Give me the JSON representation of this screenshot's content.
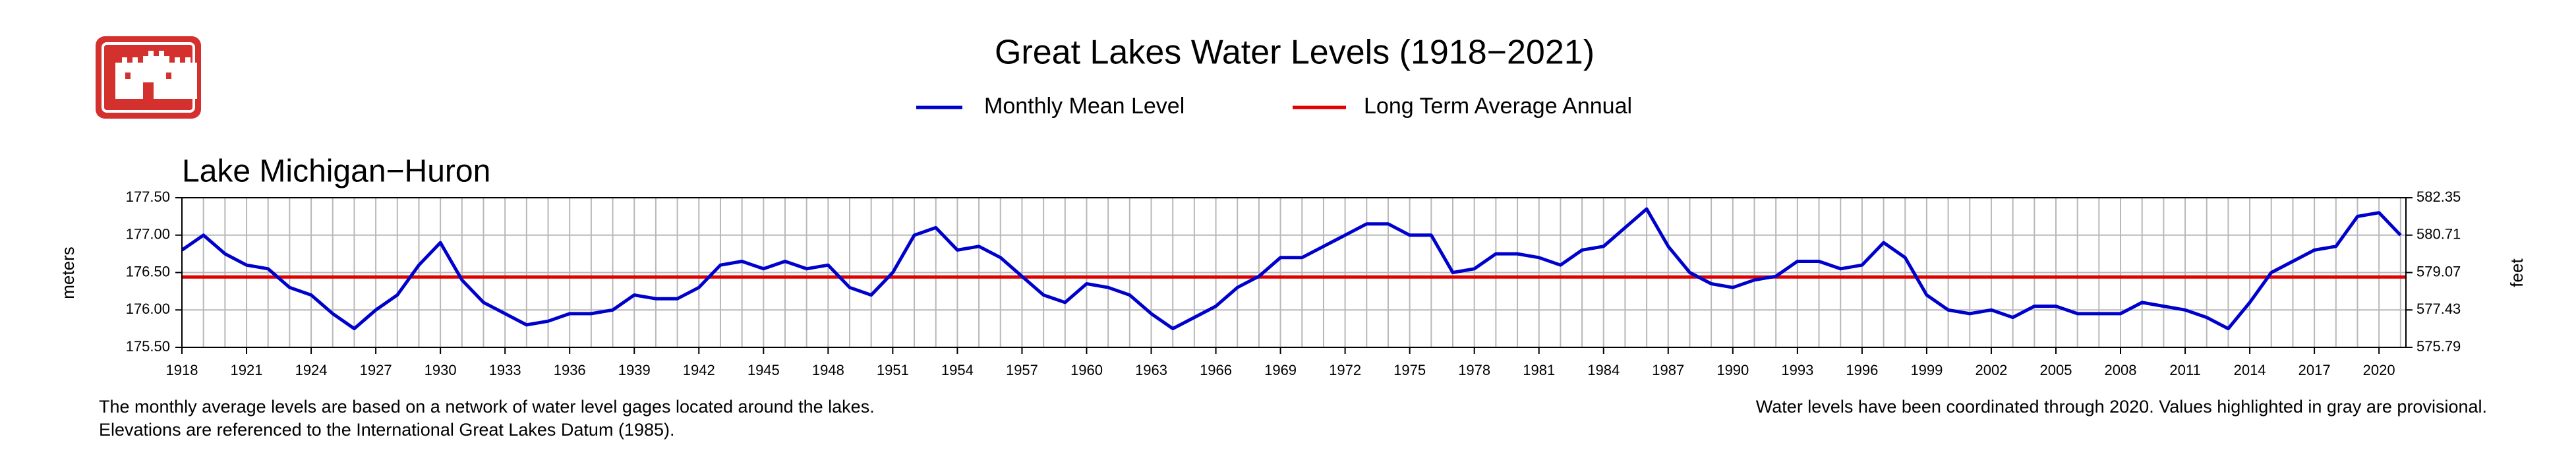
{
  "chart_data": {
    "type": "line",
    "title": "Great Lakes Water Levels (1918−2021)",
    "subtitle": "Lake Michigan−Huron",
    "ylabel": "meters",
    "y2label": "feet",
    "notes": [
      "The monthly average levels are based on a network of water level gages located around the lakes.",
      "Elevations are referenced to the International Great Lakes Datum (1985).",
      "Water levels have been coordinated through 2020. Values highlighted in gray are provisional."
    ],
    "x": [
      1918,
      1919,
      1920,
      1921,
      1922,
      1923,
      1924,
      1925,
      1926,
      1927,
      1928,
      1929,
      1930,
      1931,
      1932,
      1933,
      1934,
      1935,
      1936,
      1937,
      1938,
      1939,
      1940,
      1941,
      1942,
      1943,
      1944,
      1945,
      1946,
      1947,
      1948,
      1949,
      1950,
      1951,
      1952,
      1953,
      1954,
      1955,
      1956,
      1957,
      1958,
      1959,
      1960,
      1961,
      1962,
      1963,
      1964,
      1965,
      1966,
      1967,
      1968,
      1969,
      1970,
      1971,
      1972,
      1973,
      1974,
      1975,
      1976,
      1977,
      1978,
      1979,
      1980,
      1981,
      1982,
      1983,
      1984,
      1985,
      1986,
      1987,
      1988,
      1989,
      1990,
      1991,
      1992,
      1993,
      1994,
      1995,
      1996,
      1997,
      1998,
      1999,
      2000,
      2001,
      2002,
      2003,
      2004,
      2005,
      2006,
      2007,
      2008,
      2009,
      2010,
      2011,
      2012,
      2013,
      2014,
      2015,
      2016,
      2017,
      2018,
      2019,
      2020,
      2021
    ],
    "series": [
      {
        "name": "Monthly Mean Level",
        "color": "#0000cc",
        "values": [
          176.8,
          177.0,
          176.75,
          176.6,
          176.55,
          176.3,
          176.2,
          175.95,
          175.75,
          176.0,
          176.2,
          176.6,
          176.9,
          176.4,
          176.1,
          175.95,
          175.8,
          175.85,
          175.95,
          175.95,
          176.0,
          176.2,
          176.15,
          176.15,
          176.3,
          176.6,
          176.65,
          176.55,
          176.65,
          176.55,
          176.6,
          176.3,
          176.2,
          176.5,
          177.0,
          177.1,
          176.8,
          176.85,
          176.7,
          176.45,
          176.2,
          176.1,
          176.35,
          176.3,
          176.2,
          175.95,
          175.75,
          175.9,
          176.05,
          176.3,
          176.45,
          176.7,
          176.7,
          176.85,
          177.0,
          177.15,
          177.15,
          177.0,
          177.0,
          176.5,
          176.55,
          176.75,
          176.75,
          176.7,
          176.6,
          176.8,
          176.85,
          177.1,
          177.35,
          176.85,
          176.5,
          176.35,
          176.3,
          176.4,
          176.45,
          176.65,
          176.65,
          176.55,
          176.6,
          176.9,
          176.7,
          176.2,
          176.0,
          175.95,
          176.0,
          175.9,
          176.05,
          176.05,
          175.95,
          175.95,
          175.95,
          176.1,
          176.05,
          176.0,
          175.9,
          175.75,
          176.1,
          176.5,
          176.65,
          176.8,
          176.85,
          177.25,
          177.3,
          177.0
        ]
      }
    ],
    "reference_line": {
      "name": "Long Term Average Annual",
      "value": 176.44,
      "color": "#e00000"
    },
    "xlim": [
      1918,
      2021.25
    ],
    "xticks": [
      1918,
      1921,
      1924,
      1927,
      1930,
      1933,
      1936,
      1939,
      1942,
      1945,
      1948,
      1951,
      1954,
      1957,
      1960,
      1963,
      1966,
      1969,
      1972,
      1975,
      1978,
      1981,
      1984,
      1987,
      1990,
      1993,
      1996,
      1999,
      2002,
      2005,
      2008,
      2011,
      2014,
      2017,
      2020
    ],
    "xminor_ticks": [
      1918,
      1919,
      1920,
      1921,
      1922,
      1923,
      1924,
      1925,
      1926,
      1927,
      1928,
      1929,
      1930,
      1931,
      1932,
      1933,
      1934,
      1935,
      1936,
      1937,
      1938,
      1939,
      1940,
      1941,
      1942,
      1943,
      1944,
      1945,
      1946,
      1947,
      1948,
      1949,
      1950,
      1951,
      1952,
      1953,
      1954,
      1955,
      1956,
      1957,
      1958,
      1959,
      1960,
      1961,
      1962,
      1963,
      1964,
      1965,
      1966,
      1967,
      1968,
      1969,
      1970,
      1971,
      1972,
      1973,
      1974,
      1975,
      1976,
      1977,
      1978,
      1979,
      1980,
      1981,
      1982,
      1983,
      1984,
      1985,
      1986,
      1987,
      1988,
      1989,
      1990,
      1991,
      1992,
      1993,
      1994,
      1995,
      1996,
      1997,
      1998,
      1999,
      2000,
      2001,
      2002,
      2003,
      2004,
      2005,
      2006,
      2007,
      2008,
      2009,
      2010,
      2011,
      2012,
      2013,
      2014,
      2015,
      2016,
      2017,
      2018,
      2019,
      2020,
      2021
    ],
    "ylim": [
      175.5,
      177.5
    ],
    "yticks": [
      {
        "value": 175.5,
        "label": "175.50"
      },
      {
        "value": 176.0,
        "label": "176.00"
      },
      {
        "value": 176.5,
        "label": "176.50"
      },
      {
        "value": 177.0,
        "label": "177.00"
      },
      {
        "value": 177.5,
        "label": "177.50"
      }
    ],
    "y2lim": [
      575.79,
      582.35
    ],
    "y2ticks": [
      575.79,
      577.43,
      579.07,
      580.71,
      582.35
    ],
    "grid": true
  }
}
